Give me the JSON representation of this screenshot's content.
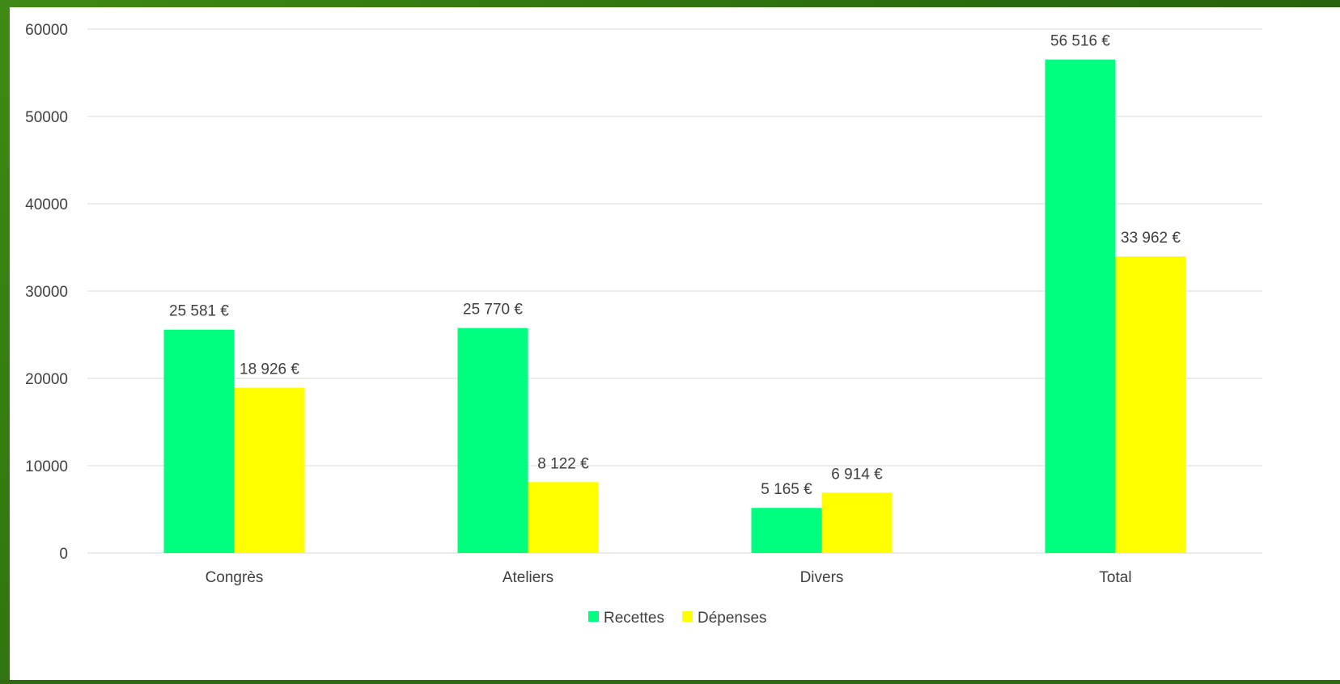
{
  "chart_data": {
    "type": "bar",
    "title": "",
    "xlabel": "",
    "ylabel": "",
    "categories": [
      "Congrès",
      "Ateliers",
      "Divers",
      "Total"
    ],
    "series": [
      {
        "name": "Recettes",
        "color": "#00ff7f",
        "values": [
          25581,
          25770,
          5165,
          56516
        ],
        "labels": [
          "25 581 €",
          "25 770 €",
          "5 165 €",
          "56 516 €"
        ]
      },
      {
        "name": "Dépenses",
        "color": "#ffff00",
        "values": [
          18926,
          8122,
          6914,
          33962
        ],
        "labels": [
          "18 926 €",
          "8 122 €",
          "6 914 €",
          "33 962 €"
        ]
      }
    ],
    "ylim": [
      0,
      60000
    ],
    "yticks": [
      0,
      10000,
      20000,
      30000,
      40000,
      50000,
      60000
    ],
    "grid": true,
    "legend": "bottom-center",
    "gridColor": "#d9d9d9",
    "textColor": "#404040"
  }
}
